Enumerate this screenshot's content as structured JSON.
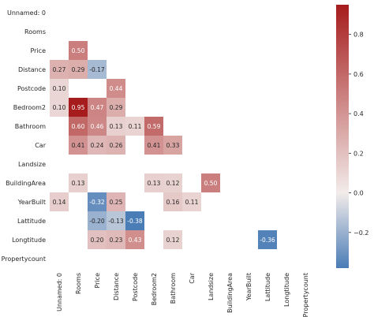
{
  "chart_data": {
    "type": "heatmap",
    "title": "",
    "xlabel": "",
    "ylabel": "",
    "labels": [
      "Unnamed: 0",
      "Rooms",
      "Price",
      "Distance",
      "Postcode",
      "Bedroom2",
      "Bathroom",
      "Car",
      "Landsize",
      "BuildingArea",
      "YearBuilt",
      "Lattitude",
      "Longtitude",
      "Propertycount"
    ],
    "cells": [
      {
        "row": 2,
        "col": 1,
        "value": 0.5,
        "label": "0.50"
      },
      {
        "row": 3,
        "col": 0,
        "value": 0.27,
        "label": "0.27"
      },
      {
        "row": 3,
        "col": 1,
        "value": 0.29,
        "label": "0.29"
      },
      {
        "row": 3,
        "col": 2,
        "value": -0.17,
        "label": "-0.17"
      },
      {
        "row": 4,
        "col": 0,
        "value": 0.1,
        "label": "0.10"
      },
      {
        "row": 4,
        "col": 3,
        "value": 0.44,
        "label": "0.44"
      },
      {
        "row": 5,
        "col": 0,
        "value": 0.1,
        "label": "0.10"
      },
      {
        "row": 5,
        "col": 1,
        "value": 0.95,
        "label": "0.95"
      },
      {
        "row": 5,
        "col": 2,
        "value": 0.47,
        "label": "0.47"
      },
      {
        "row": 5,
        "col": 3,
        "value": 0.29,
        "label": "0.29"
      },
      {
        "row": 6,
        "col": 1,
        "value": 0.6,
        "label": "0.60"
      },
      {
        "row": 6,
        "col": 2,
        "value": 0.46,
        "label": "0.46"
      },
      {
        "row": 6,
        "col": 3,
        "value": 0.13,
        "label": "0.13"
      },
      {
        "row": 6,
        "col": 4,
        "value": 0.11,
        "label": "0.11"
      },
      {
        "row": 6,
        "col": 5,
        "value": 0.59,
        "label": "0.59"
      },
      {
        "row": 7,
        "col": 1,
        "value": 0.41,
        "label": "0.41"
      },
      {
        "row": 7,
        "col": 2,
        "value": 0.24,
        "label": "0.24"
      },
      {
        "row": 7,
        "col": 3,
        "value": 0.26,
        "label": "0.26"
      },
      {
        "row": 7,
        "col": 5,
        "value": 0.41,
        "label": "0.41"
      },
      {
        "row": 7,
        "col": 6,
        "value": 0.33,
        "label": "0.33"
      },
      {
        "row": 9,
        "col": 1,
        "value": 0.13,
        "label": "0.13"
      },
      {
        "row": 9,
        "col": 5,
        "value": 0.13,
        "label": "0.13"
      },
      {
        "row": 9,
        "col": 6,
        "value": 0.12,
        "label": "0.12"
      },
      {
        "row": 9,
        "col": 8,
        "value": 0.5,
        "label": "0.50"
      },
      {
        "row": 10,
        "col": 0,
        "value": 0.14,
        "label": "0.14"
      },
      {
        "row": 10,
        "col": 2,
        "value": -0.32,
        "label": "-0.32"
      },
      {
        "row": 10,
        "col": 3,
        "value": 0.25,
        "label": "0.25"
      },
      {
        "row": 10,
        "col": 6,
        "value": 0.16,
        "label": "0.16"
      },
      {
        "row": 10,
        "col": 7,
        "value": 0.11,
        "label": "0.11"
      },
      {
        "row": 11,
        "col": 2,
        "value": -0.2,
        "label": "-0.20"
      },
      {
        "row": 11,
        "col": 3,
        "value": -0.13,
        "label": "-0.13"
      },
      {
        "row": 11,
        "col": 4,
        "value": -0.38,
        "label": "-0.38"
      },
      {
        "row": 12,
        "col": 2,
        "value": 0.2,
        "label": "0.20"
      },
      {
        "row": 12,
        "col": 3,
        "value": 0.23,
        "label": "0.23"
      },
      {
        "row": 12,
        "col": 4,
        "value": 0.43,
        "label": "0.43"
      },
      {
        "row": 12,
        "col": 6,
        "value": 0.12,
        "label": "0.12"
      },
      {
        "row": 12,
        "col": 11,
        "value": -0.36,
        "label": "-0.36"
      }
    ],
    "colorbar": {
      "range": [
        -0.38,
        0.95
      ],
      "ticks": [
        -0.2,
        0.0,
        0.2,
        0.4,
        0.6,
        0.8
      ],
      "tick_labels": [
        "−0.2",
        "0.0",
        "0.2",
        "0.4",
        "0.6",
        "0.8"
      ]
    },
    "colormap": {
      "negative": "#4a7cb6",
      "center": "#f2ecea",
      "positive": "#a61c1c"
    },
    "grid": false
  }
}
